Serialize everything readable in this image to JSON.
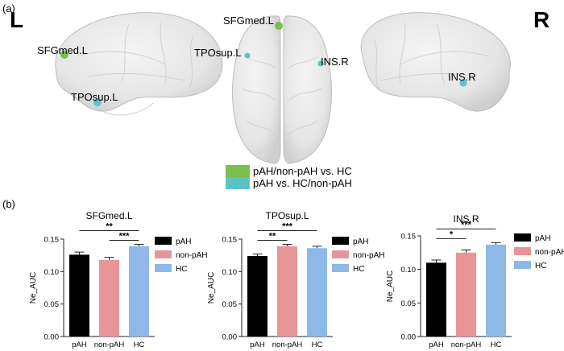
{
  "panel_a": {
    "label": "(a)",
    "left_hemisphere_letter": "L",
    "right_hemisphere_letter": "R",
    "regions": {
      "left_sfgmed": "SFGmed.L",
      "left_tposup": "TPOsup.L",
      "top_sfgmed": "SFGmed.L",
      "top_tposup": "TPOsup.L",
      "top_ins": "INS.R",
      "right_ins": "INS.R"
    },
    "legend": [
      {
        "label": "pAH/non-pAH vs. HC",
        "color": "#7bbf4e"
      },
      {
        "label": "pAH vs. HC/non-pAH",
        "color": "#5bc3c8"
      }
    ]
  },
  "panel_b": {
    "label": "(b)"
  },
  "colors": {
    "pAH": "#000000",
    "non-pAH": "#e8959a",
    "HC": "#8db8e8",
    "green_region": "#7bbf4e",
    "cyan_region": "#5bc3c8"
  },
  "chart_data": [
    {
      "type": "bar",
      "title": "SFGmed.L",
      "ylabel": "Ne_AUC",
      "xlabel": "",
      "categories": [
        "pAH",
        "non-pAH",
        "HC"
      ],
      "values": [
        0.126,
        0.118,
        0.139
      ],
      "errors": [
        0.004,
        0.004,
        0.003
      ],
      "ylim": [
        0,
        0.15
      ],
      "yticks": [
        "0.00",
        "0.05",
        "0.10",
        "0.15"
      ],
      "legend": [
        "pAH",
        "non-pAH",
        "HC"
      ],
      "significance": [
        {
          "from": 0,
          "to": 2,
          "label": "**"
        },
        {
          "from": 1,
          "to": 2,
          "label": "***"
        }
      ]
    },
    {
      "type": "bar",
      "title": "TPOsup.L",
      "ylabel": "Ne_AUC",
      "xlabel": "",
      "categories": [
        "pAH",
        "non-pAH",
        "HC"
      ],
      "values": [
        0.124,
        0.139,
        0.136
      ],
      "errors": [
        0.003,
        0.003,
        0.003
      ],
      "ylim": [
        0,
        0.15
      ],
      "yticks": [
        "0.00",
        "0.05",
        "0.10",
        "0.15"
      ],
      "legend": [
        "pAH",
        "non-pAH",
        "HC"
      ],
      "significance": [
        {
          "from": 0,
          "to": 1,
          "label": "**"
        },
        {
          "from": 0,
          "to": 2,
          "label": "***"
        }
      ]
    },
    {
      "type": "bar",
      "title": "INS.R",
      "ylabel": "Ne_AUC",
      "xlabel": "",
      "categories": [
        "pAH",
        "non-pAH",
        "HC"
      ],
      "values": [
        0.11,
        0.125,
        0.137
      ],
      "errors": [
        0.004,
        0.004,
        0.003
      ],
      "ylim": [
        0,
        0.15
      ],
      "yticks": [
        "0.00",
        "0.05",
        "0.10",
        "0.15"
      ],
      "legend": [
        "pAH",
        "non-pAH",
        "HC"
      ],
      "significance": [
        {
          "from": 0,
          "to": 1,
          "label": "*"
        },
        {
          "from": 0,
          "to": 2,
          "label": "***"
        }
      ]
    }
  ]
}
